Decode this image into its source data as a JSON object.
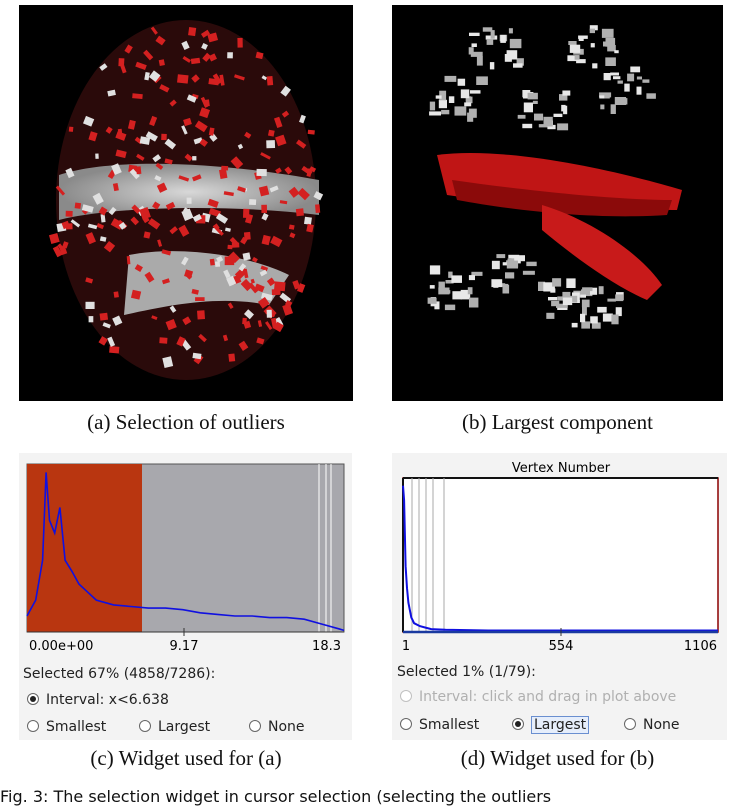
{
  "figure": {
    "panels": [
      {
        "caption": "(a) Selection of outliers"
      },
      {
        "caption": "(b) Largest component"
      },
      {
        "caption": "(c) Widget used for (a)"
      },
      {
        "caption": "(d) Widget used for (b)"
      }
    ],
    "bottom_text": "Fig. 3: The selection widget in cursor selection (selecting the outliers"
  },
  "widget_c": {
    "tick_labels": [
      "0.00e+00",
      "9.17",
      "18.3"
    ],
    "selected_text": "Selected 67% (4858/7286):",
    "options": [
      {
        "label": "Interval: x<6.638",
        "selected": true
      }
    ],
    "bottom_options": [
      {
        "label": "Smallest",
        "selected": false
      },
      {
        "label": "Largest",
        "selected": false
      },
      {
        "label": "None",
        "selected": false
      }
    ],
    "selection_color": "#b93610",
    "curve_color": "#1010e0"
  },
  "widget_d": {
    "plot_title": "Vertex Number",
    "tick_labels": [
      "1",
      "554",
      "1106"
    ],
    "selected_text": "Selected 1% (1/79):",
    "interval_option": {
      "label": "Interval: click and drag in plot above",
      "selected": false,
      "enabled": false
    },
    "bottom_options": [
      {
        "label": "Smallest",
        "selected": false
      },
      {
        "label": "Largest",
        "selected": true
      },
      {
        "label": "None",
        "selected": false
      }
    ],
    "border_color": "#8b0000",
    "curve_color": "#1010e0"
  },
  "chart_data": [
    {
      "type": "area",
      "title": "",
      "xlabel": "",
      "ylabel": "",
      "xlim": [
        0,
        18.3
      ],
      "selected_interval": [
        0,
        6.638
      ],
      "x": [
        0,
        0.5,
        0.9,
        1.1,
        1.3,
        1.6,
        1.9,
        2.2,
        2.6,
        3.0,
        3.5,
        4.0,
        5.0,
        6.0,
        7.0,
        8.0,
        9.0,
        10.0,
        11.0,
        12.0,
        13.0,
        14.0,
        15.0,
        16.0,
        17.0,
        18.0,
        18.3
      ],
      "y": [
        0.1,
        0.2,
        0.45,
        1.0,
        0.7,
        0.62,
        0.78,
        0.45,
        0.38,
        0.3,
        0.25,
        0.2,
        0.17,
        0.16,
        0.15,
        0.15,
        0.14,
        0.12,
        0.11,
        0.1,
        0.1,
        0.09,
        0.09,
        0.08,
        0.05,
        0.02,
        0.01
      ]
    },
    {
      "type": "line",
      "title": "Vertex Number",
      "xlabel": "",
      "ylabel": "",
      "xlim": [
        1,
        1106
      ],
      "x": [
        1,
        5,
        10,
        15,
        20,
        30,
        40,
        60,
        80,
        100,
        150,
        300,
        600,
        1106
      ],
      "y": [
        1.0,
        0.9,
        0.45,
        0.3,
        0.2,
        0.1,
        0.06,
        0.04,
        0.03,
        0.02,
        0.015,
        0.01,
        0.01,
        0.01
      ]
    }
  ]
}
